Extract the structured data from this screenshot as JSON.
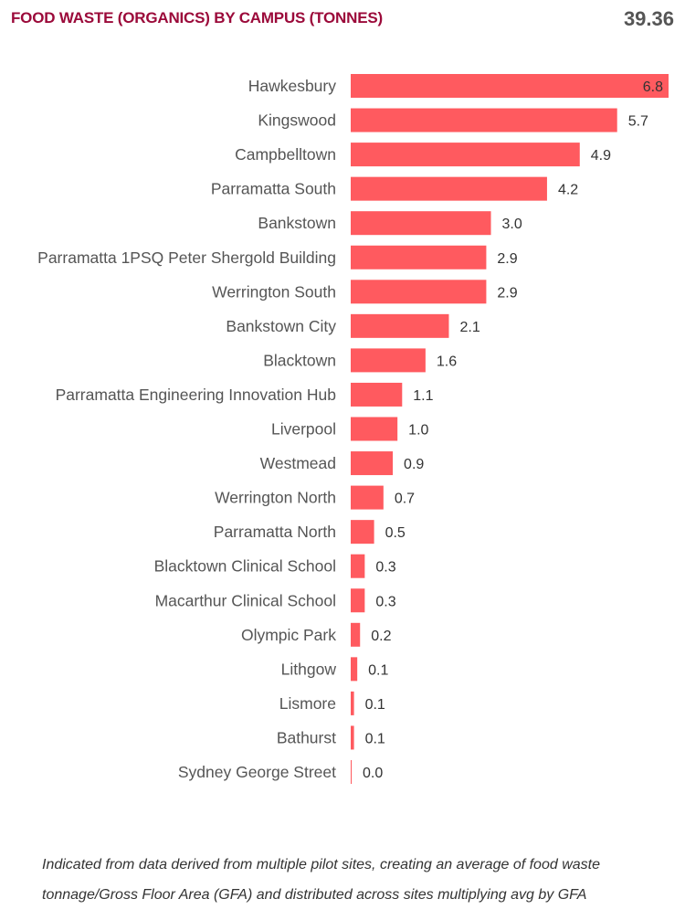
{
  "header": {
    "title": "FOOD WASTE (ORGANICS) BY CAMPUS (TONNES)",
    "total": "39.36"
  },
  "footnote": "Indicated from data derived from multiple pilot sites, creating an average of food waste tonnage/Gross Floor Area (GFA) and distributed across sites multiplying avg by GFA",
  "chart_data": {
    "type": "bar",
    "orientation": "horizontal",
    "title": "FOOD WASTE (ORGANICS) BY CAMPUS (TONNES)",
    "categories": [
      "Hawkesbury",
      "Kingswood",
      "Campbelltown",
      "Parramatta South",
      "Bankstown",
      "Parramatta 1PSQ Peter Shergold Building",
      "Werrington South",
      "Bankstown City",
      "Blacktown",
      "Parramatta Engineering Innovation Hub",
      "Liverpool",
      "Westmead",
      "Werrington North",
      "Parramatta North",
      "Blacktown Clinical School",
      "Macarthur Clinical School",
      "Olympic Park",
      "Lithgow",
      "Lismore",
      "Bathurst",
      "Sydney George Street"
    ],
    "values": [
      6.8,
      5.7,
      4.9,
      4.2,
      3.0,
      2.9,
      2.9,
      2.1,
      1.6,
      1.1,
      1.0,
      0.9,
      0.7,
      0.5,
      0.3,
      0.3,
      0.2,
      0.14,
      0.07,
      0.07,
      0.02
    ],
    "xlim": [
      0,
      6.8
    ],
    "grid": false,
    "data_labels": true,
    "bar_color": "#ff5a5f"
  }
}
